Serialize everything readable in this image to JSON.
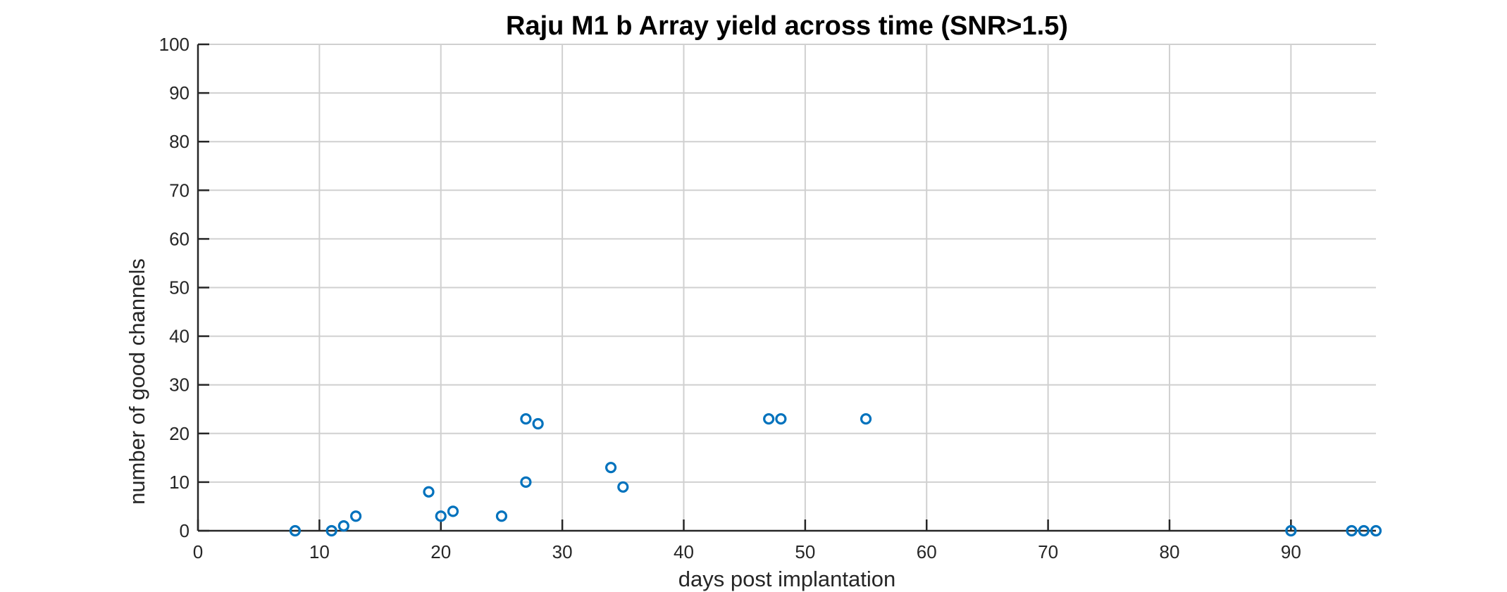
{
  "chart_data": {
    "type": "scatter",
    "title": "Raju M1 b Array yield across time (SNR>1.5)",
    "xlabel": "days post implantation",
    "ylabel": "number of good channels",
    "xlim": [
      0,
      97
    ],
    "ylim": [
      0,
      100
    ],
    "xticks": [
      0,
      10,
      20,
      30,
      40,
      50,
      60,
      70,
      80,
      90
    ],
    "yticks": [
      0,
      10,
      20,
      30,
      40,
      50,
      60,
      70,
      80,
      90,
      100
    ],
    "grid": true,
    "marker": "circle",
    "marker_color": "#0072BD",
    "points": [
      {
        "x": 8,
        "y": 0
      },
      {
        "x": 11,
        "y": 0
      },
      {
        "x": 12,
        "y": 1
      },
      {
        "x": 13,
        "y": 3
      },
      {
        "x": 19,
        "y": 8
      },
      {
        "x": 20,
        "y": 3
      },
      {
        "x": 21,
        "y": 4
      },
      {
        "x": 25,
        "y": 3
      },
      {
        "x": 27,
        "y": 23
      },
      {
        "x": 27,
        "y": 10
      },
      {
        "x": 28,
        "y": 22
      },
      {
        "x": 34,
        "y": 13
      },
      {
        "x": 35,
        "y": 9
      },
      {
        "x": 47,
        "y": 23
      },
      {
        "x": 48,
        "y": 23
      },
      {
        "x": 55,
        "y": 23
      },
      {
        "x": 90,
        "y": 0
      },
      {
        "x": 95,
        "y": 0
      },
      {
        "x": 96,
        "y": 0
      },
      {
        "x": 97,
        "y": 0
      }
    ]
  }
}
